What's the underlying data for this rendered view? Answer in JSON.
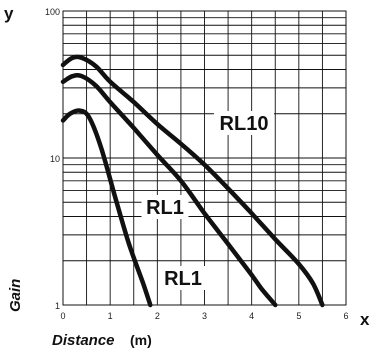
{
  "chart_data": {
    "type": "line",
    "y_axis_letter": "y",
    "x_axis_letter": "x",
    "xlabel": "Distance",
    "xlabel_unit": "(m)",
    "ylabel": "Gain",
    "xlim": [
      0,
      6
    ],
    "ylim": [
      1,
      100
    ],
    "y_scale": "log",
    "grid": true,
    "x_ticks": [
      "0",
      "1",
      "2",
      "3",
      "4",
      "5",
      "6"
    ],
    "y_ticks": [
      "1",
      "10",
      "100"
    ],
    "y_tick_values": [
      1,
      10,
      100
    ],
    "series": [
      {
        "name": "RL10",
        "x": [
          0.0,
          0.2,
          0.4,
          0.7,
          1.0,
          1.5,
          2.0,
          2.5,
          3.0,
          3.5,
          4.0,
          4.5,
          5.0,
          5.3,
          5.5
        ],
        "y": [
          43,
          48,
          48,
          42,
          33,
          24,
          17,
          12.5,
          9,
          6.2,
          4.2,
          2.8,
          1.9,
          1.4,
          1.0
        ]
      },
      {
        "name": "RL1",
        "x": [
          0.0,
          0.2,
          0.4,
          0.7,
          1.0,
          1.5,
          2.0,
          2.5,
          3.0,
          3.5,
          4.0,
          4.2,
          4.5
        ],
        "y": [
          33,
          36,
          36,
          31,
          24,
          16,
          10.5,
          7,
          4.2,
          2.6,
          1.6,
          1.3,
          1.0
        ]
      },
      {
        "name": "RL1",
        "x": [
          0.0,
          0.15,
          0.35,
          0.55,
          0.8,
          1.1,
          1.4,
          1.7,
          1.85
        ],
        "y": [
          18,
          20,
          21,
          19,
          12,
          5.5,
          2.6,
          1.4,
          1.0
        ]
      }
    ],
    "annotations": [
      {
        "text": "RL10",
        "series": 0
      },
      {
        "text": "RL1",
        "series": 1
      },
      {
        "text": "RL1",
        "series": 2
      }
    ]
  }
}
